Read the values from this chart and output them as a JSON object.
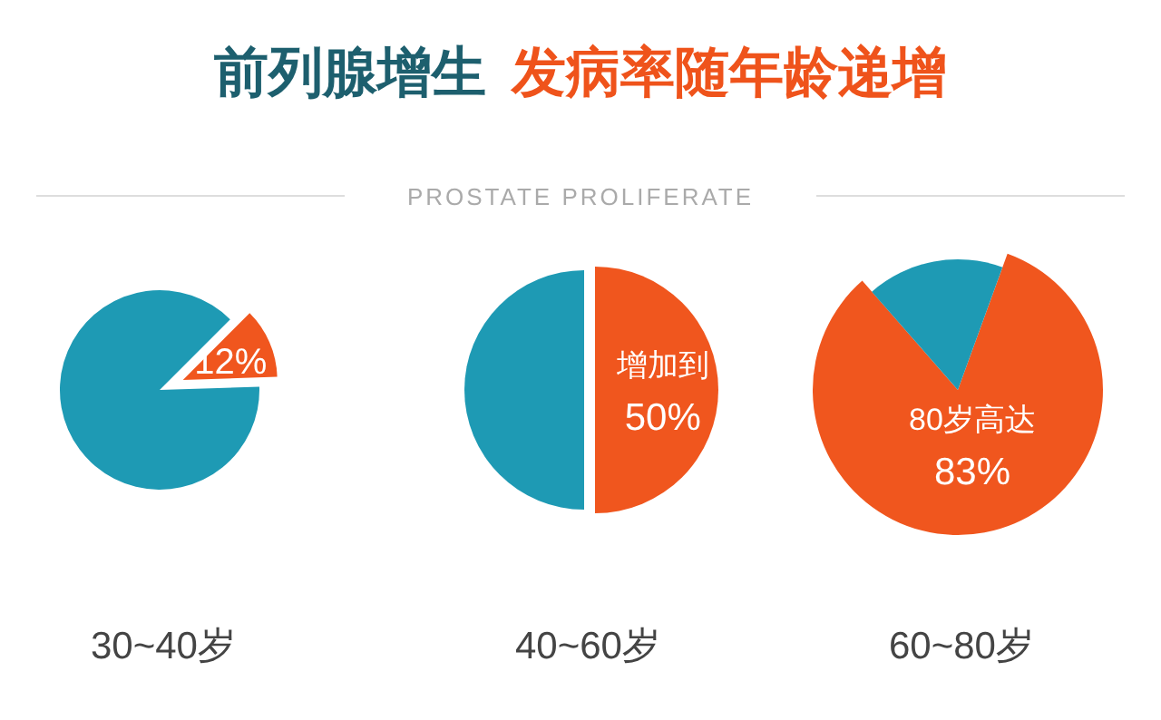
{
  "chart_data": [
    {
      "type": "other",
      "title": "前列腺增生",
      "subtitle": "发病率随年龄递增",
      "annotations": [
        "PROSTATE PROLIFERATE"
      ]
    },
    {
      "type": "pie",
      "xlabel": "30~40岁",
      "categories": [
        null,
        null
      ],
      "values": [
        12,
        88
      ],
      "colors": [
        "#f0561e",
        "#1e9ab4"
      ],
      "value_labels": [
        "12%",
        null
      ]
    },
    {
      "type": "pie",
      "xlabel": "40~60岁",
      "categories": [
        null,
        null
      ],
      "values": [
        50,
        50
      ],
      "colors": [
        "#f0561e",
        "#1e9ab4"
      ],
      "value_labels": [
        "50%",
        null
      ],
      "annotations": [
        "增加到"
      ]
    },
    {
      "type": "pie",
      "xlabel": "60~80岁",
      "categories": [
        null,
        null
      ],
      "values": [
        83,
        17
      ],
      "colors": [
        "#f0561e",
        "#1e9ab4"
      ],
      "value_labels": [
        "83%",
        null
      ],
      "annotations": [
        "80岁高达"
      ]
    }
  ]
}
